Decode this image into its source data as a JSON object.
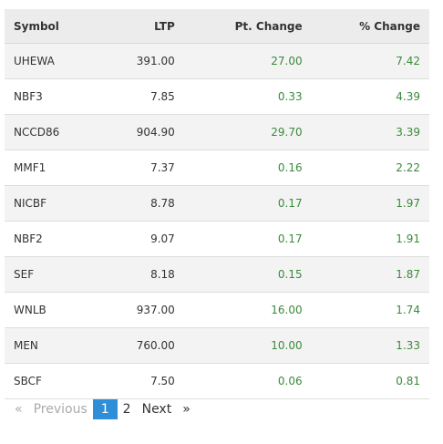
{
  "table": {
    "header": [
      "Symbol",
      "LTP",
      "Pt. Change",
      "% Change"
    ],
    "rows": [
      [
        "UHEWA",
        "391.00",
        "27.00",
        "7.42"
      ],
      [
        "NBF3",
        "7.85",
        "0.33",
        "4.39"
      ],
      [
        "NCCD86",
        "904.90",
        "29.70",
        "3.39"
      ],
      [
        "MMF1",
        "7.37",
        "0.16",
        "2.22"
      ],
      [
        "NICBF",
        "8.78",
        "0.17",
        "1.97"
      ],
      [
        "NBF2",
        "9.07",
        "0.17",
        "1.91"
      ],
      [
        "SEF",
        "8.18",
        "0.15",
        "1.87"
      ],
      [
        "WNLB",
        "937.00",
        "16.00",
        "1.74"
      ],
      [
        "MEN",
        "760.00",
        "10.00",
        "1.33"
      ],
      [
        "SBCF",
        "7.50",
        "0.06",
        "0.81"
      ]
    ]
  },
  "pagination": {
    "first": "«",
    "previous": "Previous",
    "pages": [
      "1",
      "2"
    ],
    "next": "Next",
    "last": "»"
  }
}
